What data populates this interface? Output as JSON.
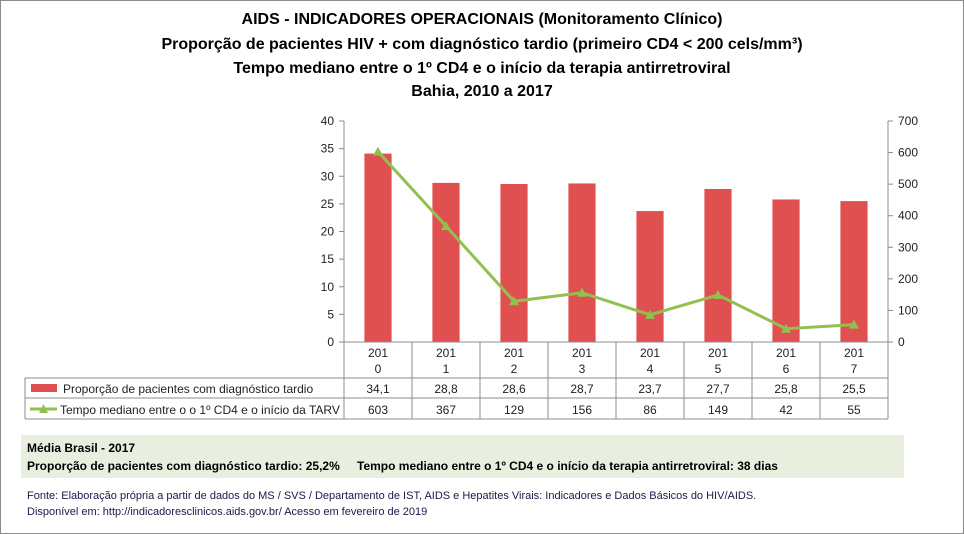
{
  "titles": [
    "AIDS - INDICADORES OPERACIONAIS (Monitoramento Clínico)",
    "Proporção de pacientes HIV + com diagnóstico tardio (primeiro CD4 < 200 cels/mm³)",
    "Tempo mediano entre o 1º CD4 e o início da terapia antirretroviral",
    "Bahia, 2010 a 2017"
  ],
  "chart_data": {
    "type": "bar+line",
    "categories": [
      "2010",
      "2011",
      "2012",
      "2013",
      "2014",
      "2015",
      "2016",
      "2017"
    ],
    "category_labels": [
      [
        "201",
        "0"
      ],
      [
        "201",
        "1"
      ],
      [
        "201",
        "2"
      ],
      [
        "201",
        "3"
      ],
      [
        "201",
        "4"
      ],
      [
        "201",
        "5"
      ],
      [
        "201",
        "6"
      ],
      [
        "201",
        "7"
      ]
    ],
    "series": [
      {
        "name": "Proporção de pacientes com diagnóstico tardio",
        "type": "bar",
        "axis": "left",
        "color": "#e05050",
        "values": [
          34.1,
          28.8,
          28.6,
          28.7,
          23.7,
          27.7,
          25.8,
          25.5
        ],
        "labels": [
          "34,1",
          "28,8",
          "28,6",
          "28,7",
          "23,7",
          "27,7",
          "25,8",
          "25,5"
        ]
      },
      {
        "name": "Tempo mediano entre o o 1º CD4 e o início da TARV",
        "type": "line",
        "axis": "right",
        "color": "#92c050",
        "marker": "triangle",
        "values": [
          603,
          367,
          129,
          156,
          86,
          149,
          42,
          55
        ],
        "labels": [
          "603",
          "367",
          "129",
          "156",
          "86",
          "149",
          "42",
          "55"
        ]
      }
    ],
    "y_left": {
      "range": [
        0,
        40
      ],
      "ticks": [
        0,
        5,
        10,
        15,
        20,
        25,
        30,
        35,
        40
      ]
    },
    "y_right": {
      "range": [
        0,
        700
      ],
      "ticks": [
        0,
        100,
        200,
        300,
        400,
        500,
        600,
        700
      ]
    },
    "grid": "vertical category lines",
    "legend": "data table"
  },
  "media": {
    "title": "Média Brasil - 2017",
    "prop": "Proporção de pacientes com diagnóstico  tardio: 25,2%",
    "tempo": "Tempo mediano entre o 1º CD4 e o início da terapia antirretroviral: 38 dias"
  },
  "fonte": [
    "Fonte: Elaboração própria a partir de dados do  MS / SVS / Departamento de IST, AIDS e Hepatites Virais: Indicadores e Dados Básicos do HIV/AIDS.",
    "Disponível em: http://indicadoresclinicos.aids.gov.br/ Acesso em fevereiro de 2019"
  ]
}
